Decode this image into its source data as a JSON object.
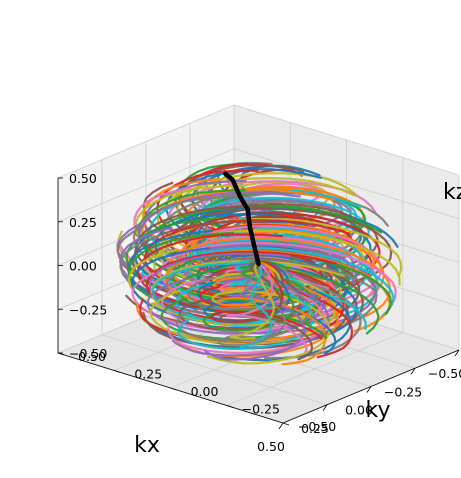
{
  "chart_data": {
    "type": "line",
    "projection": "3d",
    "description_of_marks": "radial k-space trajectories emanating from the origin and spiralling over a sphere of radius ~0.5; one highlighted trajectory in black",
    "xlabel": "kx",
    "ylabel": "ky",
    "zlabel": "kz",
    "xlim": [
      -0.5,
      0.5
    ],
    "ylim": [
      -0.5,
      0.5
    ],
    "zlim": [
      -0.5,
      0.5
    ],
    "xticks": [
      "−0.50",
      "−0.25",
      "0.00",
      "0.25",
      "0.50"
    ],
    "yticks": [
      "−0.50",
      "−0.25",
      "0.00",
      "0.25",
      "0.50"
    ],
    "zticks": [
      "−0.50",
      "−0.25",
      "0.00",
      "0.25",
      "0.50"
    ],
    "grid": true,
    "sphere_radius": 0.5,
    "series_colors": [
      "#1f77b4",
      "#ff7f0e",
      "#2ca02c",
      "#d62728",
      "#9467bd",
      "#8c564b",
      "#e377c2",
      "#7f7f7f",
      "#bcbd22",
      "#17becf"
    ],
    "highlight_series": {
      "color": "#000000",
      "points": [
        [
          0,
          0,
          0
        ],
        [
          0.0,
          0.02,
          0.1
        ],
        [
          0.01,
          0.03,
          0.2
        ],
        [
          0.01,
          0.04,
          0.3
        ],
        [
          0.04,
          0.05,
          0.38
        ],
        [
          0.02,
          0.1,
          0.45
        ],
        [
          0.06,
          0.1,
          0.5
        ]
      ]
    }
  }
}
